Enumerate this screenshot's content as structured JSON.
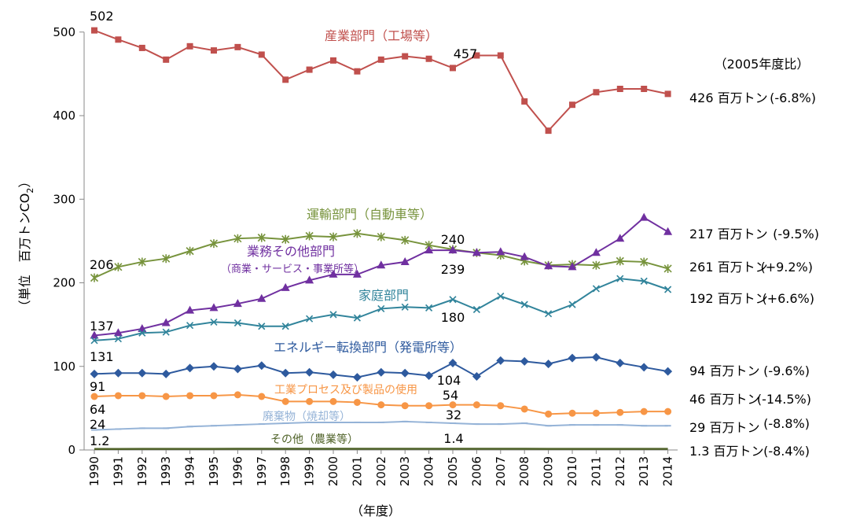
{
  "chart_data": {
    "type": "line",
    "title": "",
    "xlabel": "（年度）",
    "ylabel": "（単位　百万トンCO",
    "ylabel_sub": "2",
    "ylabel_close": "）",
    "ylim": [
      0,
      500
    ],
    "yticks": [
      "0",
      "100",
      "200",
      "300",
      "400",
      "500"
    ],
    "categories": [
      "1990",
      "1991",
      "1992",
      "1993",
      "1994",
      "1995",
      "1996",
      "1997",
      "1998",
      "1999",
      "2000",
      "2001",
      "2002",
      "2003",
      "2004",
      "2005",
      "2006",
      "2007",
      "2008",
      "2009",
      "2010",
      "2011",
      "2012",
      "2013",
      "2014"
    ],
    "comparison_note": "（2005年度比）",
    "series": [
      {
        "name": "産業部門（工場等）",
        "color": "#c0504d",
        "marker": "square",
        "values": [
          502,
          491,
          481,
          467,
          483,
          478,
          482,
          473,
          443,
          455,
          466,
          453,
          467,
          471,
          468,
          457,
          472,
          472,
          417,
          382,
          413,
          428,
          432,
          432,
          426
        ],
        "labels": [
          {
            "i": 0,
            "text": "502"
          },
          {
            "i": 15,
            "text": "457"
          }
        ],
        "end_value": "426 百万トン",
        "end_change": "(-6.8%)"
      },
      {
        "name": "運輸部門（自動車等）",
        "color": "#77933c",
        "marker": "asterisk",
        "values": [
          206,
          219,
          225,
          229,
          238,
          247,
          253,
          254,
          252,
          256,
          255,
          259,
          255,
          251,
          245,
          240,
          236,
          233,
          226,
          221,
          222,
          221,
          226,
          225,
          217
        ],
        "labels": [
          {
            "i": 0,
            "text": "206"
          },
          {
            "i": 15,
            "text": "240"
          }
        ],
        "end_value": "217 百万トン",
        "end_change": "(-9.5%)"
      },
      {
        "name": "業務その他部門",
        "subname": "（商業・サービス・事業所等）",
        "color": "#7030a0",
        "marker": "triangle",
        "values": [
          137,
          140,
          145,
          152,
          167,
          170,
          175,
          181,
          194,
          203,
          210,
          210,
          221,
          225,
          239,
          239,
          236,
          237,
          231,
          220,
          219,
          236,
          253,
          278,
          261
        ],
        "labels": [
          {
            "i": 0,
            "text": "137"
          },
          {
            "i": 15,
            "text": "239"
          }
        ],
        "end_value": "261 百万トン",
        "end_change": "(+9.2%)"
      },
      {
        "name": "家庭部門",
        "color": "#31849b",
        "marker": "x",
        "values": [
          131,
          133,
          140,
          141,
          149,
          153,
          152,
          148,
          148,
          157,
          162,
          158,
          169,
          171,
          170,
          180,
          168,
          184,
          174,
          163,
          174,
          193,
          205,
          202,
          192
        ],
        "labels": [
          {
            "i": 0,
            "text": "131"
          },
          {
            "i": 15,
            "text": "180"
          }
        ],
        "end_value": "192 百万トン",
        "end_change": "(+6.6%)"
      },
      {
        "name": "エネルギー転換部門（発電所等）",
        "color": "#2e5a9e",
        "marker": "diamond",
        "values": [
          91,
          92,
          92,
          91,
          98,
          100,
          97,
          101,
          92,
          93,
          90,
          87,
          93,
          92,
          89,
          104,
          88,
          107,
          106,
          103,
          110,
          111,
          104,
          99,
          94
        ],
        "labels": [
          {
            "i": 0,
            "text": "91"
          },
          {
            "i": 15,
            "text": "104"
          }
        ],
        "end_value": "94 百万トン",
        "end_change": "(-9.6%)"
      },
      {
        "name": "工業プロセス及び製品の使用",
        "color": "#f79646",
        "marker": "circle",
        "values": [
          64,
          65,
          65,
          64,
          65,
          65,
          66,
          64,
          58,
          58,
          58,
          57,
          54,
          53,
          53,
          54,
          54,
          53,
          49,
          43,
          44,
          44,
          45,
          46,
          46
        ],
        "labels": [
          {
            "i": 0,
            "text": "64"
          },
          {
            "i": 15,
            "text": "54"
          }
        ],
        "end_value": "46 百万トン",
        "end_change": "(-14.5%)"
      },
      {
        "name": "廃棄物（焼却等）",
        "color": "#95b3d7",
        "marker": "dash",
        "values": [
          24,
          25,
          26,
          26,
          28,
          29,
          30,
          31,
          32,
          33,
          33,
          33,
          33,
          34,
          33,
          32,
          31,
          31,
          32,
          29,
          30,
          30,
          30,
          29,
          29
        ],
        "labels": [
          {
            "i": 0,
            "text": "24"
          },
          {
            "i": 15,
            "text": "32"
          }
        ],
        "end_value": "29 百万トン",
        "end_change": "(-8.8%)"
      },
      {
        "name": "その他（農業等）",
        "color": "#4f6228",
        "marker": "none",
        "values": [
          1.2,
          1.2,
          1.3,
          1.3,
          1.3,
          1.3,
          1.4,
          1.4,
          1.4,
          1.4,
          1.4,
          1.4,
          1.4,
          1.4,
          1.4,
          1.4,
          1.4,
          1.4,
          1.4,
          1.3,
          1.3,
          1.3,
          1.3,
          1.3,
          1.3
        ],
        "labels": [
          {
            "i": 0,
            "text": "1.2"
          },
          {
            "i": 15,
            "text": "1.4"
          }
        ],
        "end_value": "1.3 百万トン",
        "end_change": "(-8.4%)"
      }
    ]
  }
}
